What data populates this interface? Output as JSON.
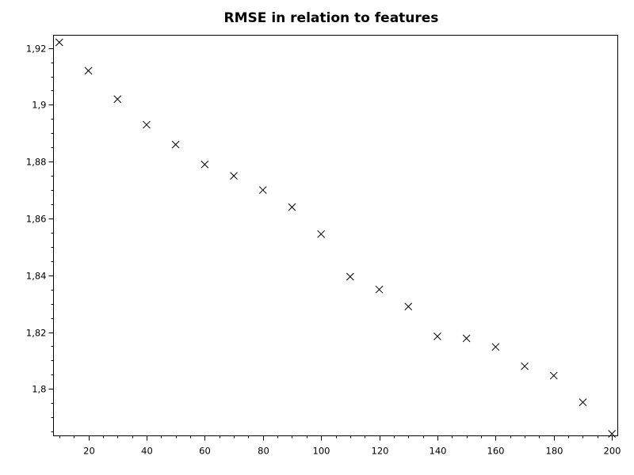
{
  "chart_data": {
    "type": "scatter",
    "title": "RMSE in relation to features",
    "xlabel": "",
    "ylabel": "",
    "xlim": [
      8,
      202
    ],
    "ylim": [
      1.7835,
      1.9245
    ],
    "x_ticks": [
      20,
      40,
      60,
      80,
      100,
      120,
      140,
      160,
      180,
      200
    ],
    "x_tick_labels": [
      "20",
      "40",
      "60",
      "80",
      "100",
      "120",
      "140",
      "160",
      "180",
      "200"
    ],
    "x_minor_step": 5,
    "y_ticks": [
      1.8,
      1.82,
      1.84,
      1.86,
      1.88,
      1.9,
      1.92
    ],
    "y_tick_labels": [
      "1,8",
      "1,82",
      "1,84",
      "1,86",
      "1,88",
      "1,9",
      "1,92"
    ],
    "y_minor_step": 0.005,
    "grid": false,
    "marker": "x",
    "marker_color": "#000000",
    "series": [
      {
        "points": [
          {
            "x": 10,
            "y": 1.922
          },
          {
            "x": 20,
            "y": 1.912
          },
          {
            "x": 30,
            "y": 1.902
          },
          {
            "x": 40,
            "y": 1.893
          },
          {
            "x": 50,
            "y": 1.886
          },
          {
            "x": 60,
            "y": 1.879
          },
          {
            "x": 70,
            "y": 1.875
          },
          {
            "x": 80,
            "y": 1.87
          },
          {
            "x": 90,
            "y": 1.864
          },
          {
            "x": 100,
            "y": 1.8545
          },
          {
            "x": 110,
            "y": 1.8395
          },
          {
            "x": 120,
            "y": 1.835
          },
          {
            "x": 130,
            "y": 1.829
          },
          {
            "x": 140,
            "y": 1.8185
          },
          {
            "x": 150,
            "y": 1.8178
          },
          {
            "x": 160,
            "y": 1.8148
          },
          {
            "x": 170,
            "y": 1.808
          },
          {
            "x": 180,
            "y": 1.8047
          },
          {
            "x": 190,
            "y": 1.7953
          },
          {
            "x": 200,
            "y": 1.7842
          }
        ]
      }
    ]
  }
}
